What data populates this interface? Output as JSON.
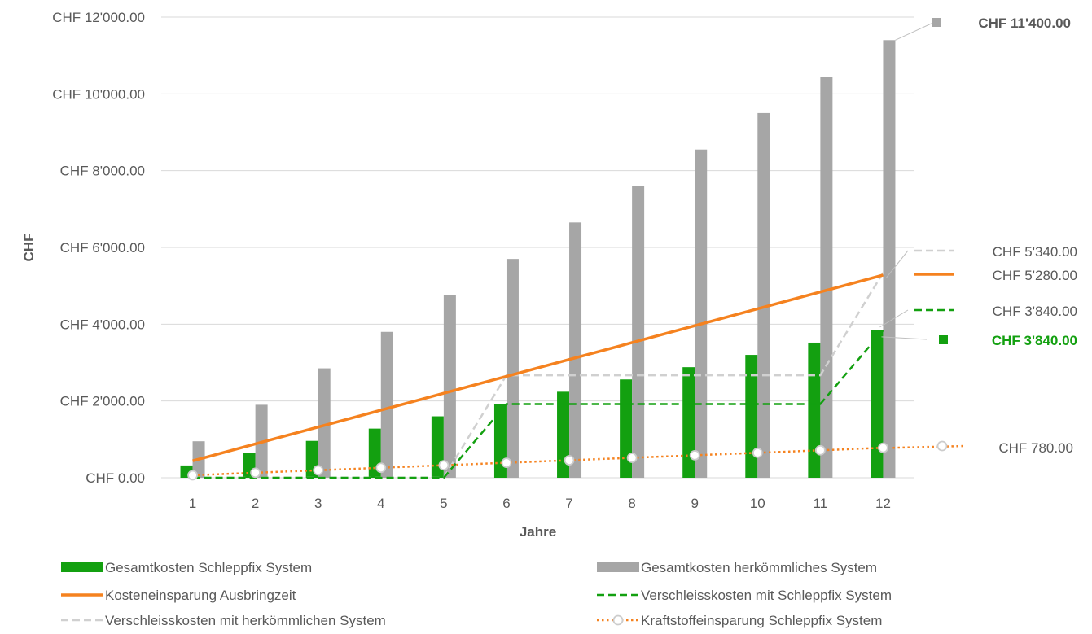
{
  "chart_data": {
    "type": "bar",
    "title": "",
    "xlabel": "Jahre",
    "ylabel": "CHF",
    "ylim": [
      0,
      12000
    ],
    "grid": true,
    "legend_position": "bottom",
    "y_ticks": [
      {
        "value": 0,
        "label": "CHF 0.00"
      },
      {
        "value": 2000,
        "label": "CHF 2'000.00"
      },
      {
        "value": 4000,
        "label": "CHF 4'000.00"
      },
      {
        "value": 6000,
        "label": "CHF 6'000.00"
      },
      {
        "value": 8000,
        "label": "CHF 8'000.00"
      },
      {
        "value": 10000,
        "label": "CHF 10'000.00"
      },
      {
        "value": 12000,
        "label": "CHF 12'000.00"
      }
    ],
    "categories": [
      "1",
      "2",
      "3",
      "4",
      "5",
      "6",
      "7",
      "8",
      "9",
      "10",
      "11",
      "12"
    ],
    "series": [
      {
        "name": "Gesamtkosten Schleppfix System",
        "kind": "bar",
        "color": "#13a010",
        "values": [
          320,
          640,
          960,
          1280,
          1600,
          1920,
          2240,
          2560,
          2880,
          3200,
          3520,
          3840
        ],
        "end_label": "CHF 3'840.00",
        "end_label_color": "#13a010"
      },
      {
        "name": "Gesamtkosten herkömmliches System",
        "kind": "bar",
        "color": "#a6a6a6",
        "values": [
          950,
          1900,
          2850,
          3800,
          4750,
          5700,
          6650,
          7600,
          8550,
          9500,
          10450,
          11400
        ],
        "end_label": "CHF 11'400.00",
        "end_label_color": "#595959"
      },
      {
        "name": "Kosteneinsparung Ausbringzeit",
        "kind": "line",
        "style": "solid",
        "color": "#f5821f",
        "values": [
          440,
          880,
          1320,
          1760,
          2200,
          2640,
          3080,
          3520,
          3960,
          4400,
          4840,
          5280
        ],
        "end_label": "CHF 5'280.00"
      },
      {
        "name": "Verschleisskosten mit Schleppfix System",
        "kind": "line",
        "style": "dashed",
        "color": "#13a010",
        "values": [
          0,
          0,
          0,
          0,
          0,
          1920,
          1920,
          1920,
          1920,
          1920,
          1920,
          3840
        ],
        "end_label": "CHF 3'840.00"
      },
      {
        "name": "Verschleisskosten mit herkömmlichen System",
        "kind": "line",
        "style": "dashed",
        "color": "#d0d0d0",
        "values": [
          0,
          0,
          0,
          0,
          0,
          2670,
          2670,
          2670,
          2670,
          2670,
          2670,
          5340
        ],
        "end_label": "CHF 5'340.00"
      },
      {
        "name": "Kraftstoffeinsparung Schleppfix System",
        "kind": "line",
        "style": "dotted",
        "color": "#f5821f",
        "values": [
          65,
          130,
          195,
          260,
          325,
          390,
          455,
          520,
          585,
          650,
          715,
          780
        ],
        "end_label": "CHF 780.00"
      }
    ]
  }
}
